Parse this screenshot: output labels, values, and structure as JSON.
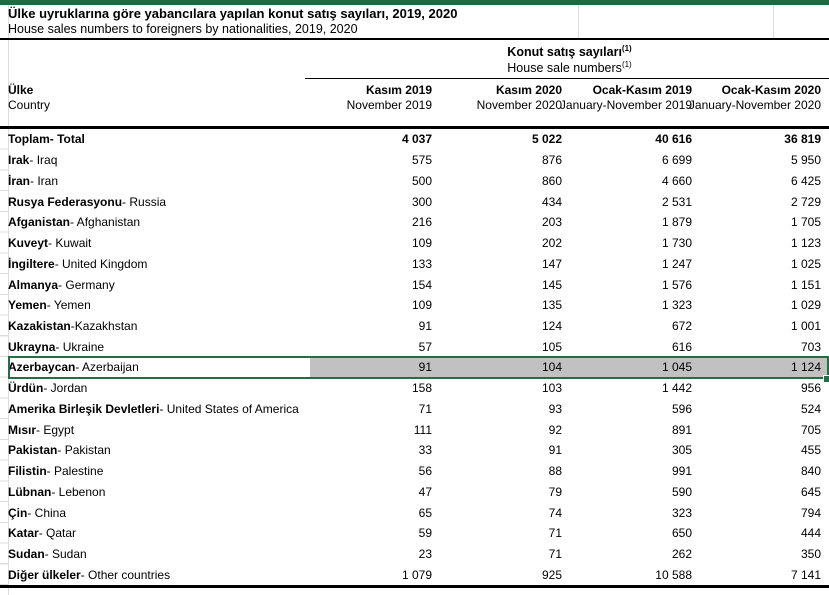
{
  "page": {
    "title_tr": "Ülke uyruklarına göre yabancılara yapılan konut satış sayıları, 2019, 2020",
    "title_en": "House sales numbers to foreigners by nationalities, 2019, 2020"
  },
  "table": {
    "group_header": {
      "tr": "Konut satış sayıları",
      "en": "House sale numbers",
      "footnote_marker": "(1)"
    },
    "country_header": {
      "tr": "Ülke",
      "en": "Country"
    },
    "columns": [
      {
        "tr": "Kasım 2019",
        "en": "November 2019"
      },
      {
        "tr": "Kasım 2020",
        "en": "November 2020"
      },
      {
        "tr": "Ocak-Kasım 2019",
        "en": "January-November 2019"
      },
      {
        "tr": "Ocak-Kasım 2020",
        "en": "January-November 2020"
      }
    ],
    "rows": [
      {
        "tr": "Toplam",
        "rest": " - Total",
        "bold": true,
        "values": [
          "4 037",
          "5 022",
          "40 616",
          "36 819"
        ]
      },
      {
        "tr": "Irak",
        "rest": " - Iraq",
        "values": [
          "575",
          "876",
          "6 699",
          "5 950"
        ]
      },
      {
        "tr": "İran",
        "rest": " - Iran",
        "values": [
          "500",
          "860",
          "4 660",
          "6 425"
        ]
      },
      {
        "tr": "Rusya Federasyonu",
        "rest": " - Russia",
        "values": [
          "300",
          "434",
          "2 531",
          "2 729"
        ]
      },
      {
        "tr": "Afganistan",
        "rest": " - Afghanistan",
        "values": [
          "216",
          "203",
          "1 879",
          "1 705"
        ]
      },
      {
        "tr": "Kuveyt",
        "rest": " - Kuwait",
        "values": [
          "109",
          "202",
          "1 730",
          "1 123"
        ]
      },
      {
        "tr": "İngiltere",
        "rest": " - United Kingdom",
        "values": [
          "133",
          "147",
          "1 247",
          "1 025"
        ]
      },
      {
        "tr": "Almanya",
        "rest": " - Germany",
        "values": [
          "154",
          "145",
          "1 576",
          "1 151"
        ]
      },
      {
        "tr": "Yemen",
        "rest": " - Yemen",
        "values": [
          "109",
          "135",
          "1 323",
          "1 029"
        ]
      },
      {
        "tr": "Kazakistan",
        "rest": " -Kazakhstan",
        "values": [
          "91",
          "124",
          "672",
          "1 001"
        ]
      },
      {
        "tr": "Ukrayna",
        "rest": " - Ukraine",
        "values": [
          "57",
          "105",
          "616",
          "703"
        ]
      },
      {
        "tr": "Azerbaycan",
        "rest": " - Azerbaijan",
        "selected": true,
        "values": [
          "91",
          "104",
          "1 045",
          "1 124"
        ]
      },
      {
        "tr": "Ürdün",
        "rest": " - Jordan",
        "values": [
          "158",
          "103",
          "1 442",
          "956"
        ]
      },
      {
        "tr": "Amerika Birleşik Devletleri",
        "rest": " - United States of America",
        "values": [
          "71",
          "93",
          "596",
          "524"
        ]
      },
      {
        "tr": "Mısır",
        "rest": " - Egypt",
        "values": [
          "111",
          "92",
          "891",
          "705"
        ]
      },
      {
        "tr": "Pakistan",
        "rest": " - Pakistan",
        "values": [
          "33",
          "91",
          "305",
          "455"
        ]
      },
      {
        "tr": "Filistin",
        "rest": " - Palestine",
        "values": [
          "56",
          "88",
          "991",
          "840"
        ]
      },
      {
        "tr": "Lübnan",
        "rest": " - Lebenon",
        "values": [
          "47",
          "79",
          "590",
          "645"
        ]
      },
      {
        "tr": "Çin",
        "rest": " - China",
        "values": [
          "65",
          "74",
          "323",
          "794"
        ]
      },
      {
        "tr": "Katar",
        "rest": " - Qatar",
        "values": [
          "59",
          "71",
          "650",
          "444"
        ]
      },
      {
        "tr": "Sudan",
        "rest": " - Sudan",
        "values": [
          "23",
          "71",
          "262",
          "350"
        ]
      },
      {
        "tr": "Diğer ülkeler",
        "rest": " - Other countries",
        "values": [
          "1 079",
          "925",
          "10 588",
          "7 141"
        ]
      }
    ]
  },
  "colors": {
    "brand_green": "#1e6b41",
    "selection_green": "#1f7145",
    "selection_fill": "#c1c1c1"
  }
}
